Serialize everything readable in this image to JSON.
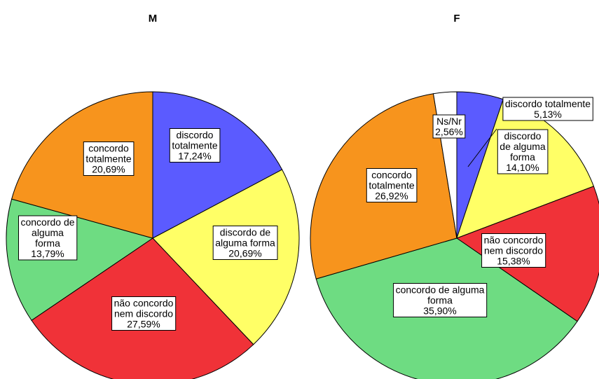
{
  "chart_data": [
    {
      "type": "pie",
      "title": "M",
      "slices": [
        {
          "lines": [
            "discordo",
            "totalmente",
            "17,24%"
          ],
          "value": 17.24,
          "color": "#5b5bff"
        },
        {
          "lines": [
            "discordo de",
            "alguma forma",
            "20,69%"
          ],
          "value": 20.69,
          "color": "#ffff66"
        },
        {
          "lines": [
            "não concordo",
            "nem discordo",
            "27,59%"
          ],
          "value": 27.59,
          "color": "#f03238"
        },
        {
          "lines": [
            "concordo de",
            "alguma",
            "forma",
            "13,79%"
          ],
          "value": 13.79,
          "color": "#6edc82"
        },
        {
          "lines": [
            "concordo",
            "totalmente",
            "20,69%"
          ],
          "value": 20.69,
          "color": "#f7941d"
        }
      ]
    },
    {
      "type": "pie",
      "title": "F",
      "slices": [
        {
          "lines": [
            "discordo totalmente",
            "5,13%"
          ],
          "value": 5.13,
          "color": "#5b5bff"
        },
        {
          "lines": [
            "discordo",
            "de alguma",
            "forma",
            "14,10%"
          ],
          "value": 14.1,
          "color": "#ffff66"
        },
        {
          "lines": [
            "não concordo",
            "nem discordo",
            "15,38%"
          ],
          "value": 15.38,
          "color": "#f03238"
        },
        {
          "lines": [
            "concordo de alguma",
            "forma",
            "35,90%"
          ],
          "value": 35.9,
          "color": "#6edc82"
        },
        {
          "lines": [
            "concordo",
            "totalmente",
            "26,92%"
          ],
          "value": 26.92,
          "color": "#f7941d"
        },
        {
          "lines": [
            "Ns/Nr",
            "2,56%"
          ],
          "value": 2.56,
          "color": "#ffffff"
        }
      ]
    }
  ]
}
